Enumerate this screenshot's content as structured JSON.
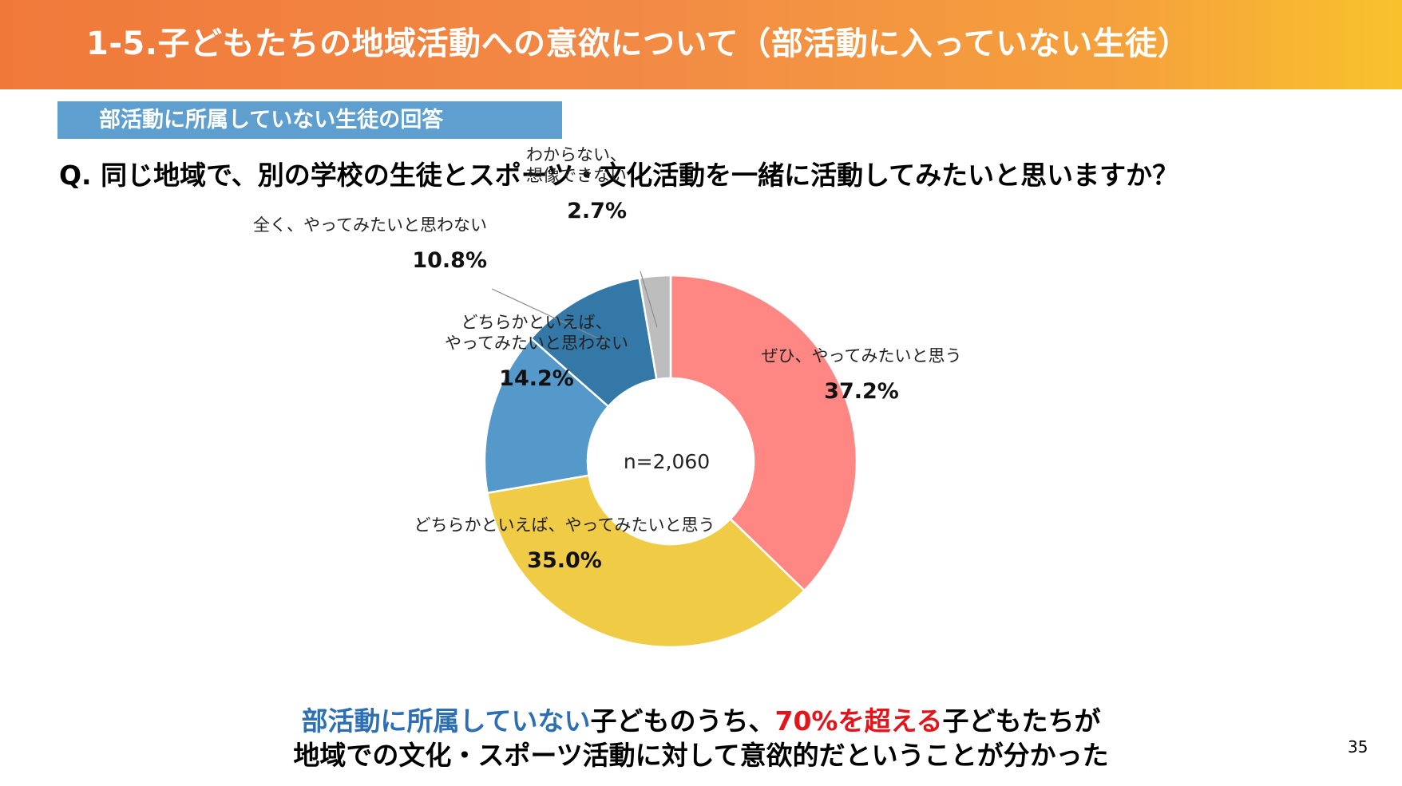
{
  "slide": {
    "title": "1-5.子どもたちの地域活動への意欲について（部活動に入っていない生徒）",
    "tag": "部活動に所属していない生徒の回答",
    "question": "Q.  同じ地域で、別の学校の生徒とスポーツ・文化活動を一緒に活動してみたいと思いますか？",
    "conclusion": {
      "line1_blue": "部活動に所属していない",
      "line1_mid": "子どものうち、",
      "line1_red": "70%を超える",
      "line1_end": "子どもたちが",
      "line2": "地域での文化・スポーツ活動に対して意欲的だということが分かった"
    },
    "page_number": "35"
  },
  "chart_data": {
    "type": "pie",
    "variant": "donut",
    "center_label": "n=2,060",
    "slices": [
      {
        "label_lines": [
          "ぜひ、やってみたいと思う"
        ],
        "value": 37.2,
        "value_label": "37.2%",
        "color": "#fe8683"
      },
      {
        "label_lines": [
          "どちらかといえば、やってみたいと思う"
        ],
        "value": 35.0,
        "value_label": "35.0%",
        "color": "#f0cb46"
      },
      {
        "label_lines": [
          "どちらかといえば、",
          "やってみたいと思わない"
        ],
        "value": 14.2,
        "value_label": "14.2%",
        "color": "#5499c9"
      },
      {
        "label_lines": [
          "全く、やってみたいと思わない"
        ],
        "value": 10.8,
        "value_label": "10.8%",
        "color": "#3478a8"
      },
      {
        "label_lines": [
          "わからない、",
          "想像できない"
        ],
        "value": 2.7,
        "value_label": "2.7%",
        "color": "#bdbdbd"
      }
    ]
  }
}
